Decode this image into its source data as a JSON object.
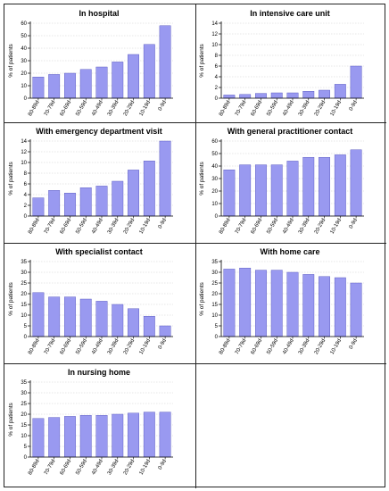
{
  "categories": [
    "80-89d",
    "70-79d",
    "60-69d",
    "50-59d",
    "40-49d",
    "30-39d",
    "20-29d",
    "10-19d",
    "0-9d"
  ],
  "ylabel": "% of patients",
  "bar_color": "#9999f0",
  "chart_data": [
    {
      "type": "bar",
      "title": "In hospital",
      "ylim": [
        0,
        60
      ],
      "ticks": [
        0,
        10,
        20,
        30,
        40,
        50,
        60
      ],
      "values": [
        17,
        19,
        20,
        23,
        25,
        29,
        35,
        43,
        58
      ]
    },
    {
      "type": "bar",
      "title": "In intensive care unit",
      "ylim": [
        0,
        14
      ],
      "ticks": [
        0,
        2,
        4,
        6,
        8,
        10,
        12,
        14
      ],
      "values": [
        0.6,
        0.7,
        0.9,
        1.0,
        1.0,
        1.3,
        1.5,
        2.6,
        6.0
      ]
    },
    {
      "type": "bar",
      "title": "With emergency department visit",
      "ylim": [
        0,
        14
      ],
      "ticks": [
        0,
        2,
        4,
        6,
        8,
        10,
        12,
        14
      ],
      "values": [
        3.4,
        4.8,
        4.3,
        5.3,
        5.6,
        6.5,
        8.6,
        10.3,
        14.0
      ]
    },
    {
      "type": "bar",
      "title": "With general practitioner contact",
      "ylim": [
        0,
        60
      ],
      "ticks": [
        0,
        10,
        20,
        30,
        40,
        50,
        60
      ],
      "values": [
        37,
        41,
        41,
        41,
        44,
        47,
        47,
        49,
        53
      ]
    },
    {
      "type": "bar",
      "title": "With specialist contact",
      "ylim": [
        0,
        35
      ],
      "ticks": [
        0,
        5,
        10,
        15,
        20,
        25,
        30,
        35
      ],
      "values": [
        20.5,
        18.5,
        18.5,
        17.5,
        16.5,
        15,
        13,
        9.5,
        5
      ]
    },
    {
      "type": "bar",
      "title": "With home care",
      "ylim": [
        0,
        35
      ],
      "ticks": [
        0,
        5,
        10,
        15,
        20,
        25,
        30,
        35
      ],
      "values": [
        31.5,
        32,
        31,
        31,
        30,
        29,
        28,
        27.5,
        25
      ]
    },
    {
      "type": "bar",
      "title": "In nursing home",
      "ylim": [
        0,
        35
      ],
      "ticks": [
        0,
        5,
        10,
        15,
        20,
        25,
        30,
        35
      ],
      "values": [
        18,
        18.5,
        19,
        19.5,
        19.5,
        20,
        20.5,
        21,
        21
      ]
    }
  ]
}
